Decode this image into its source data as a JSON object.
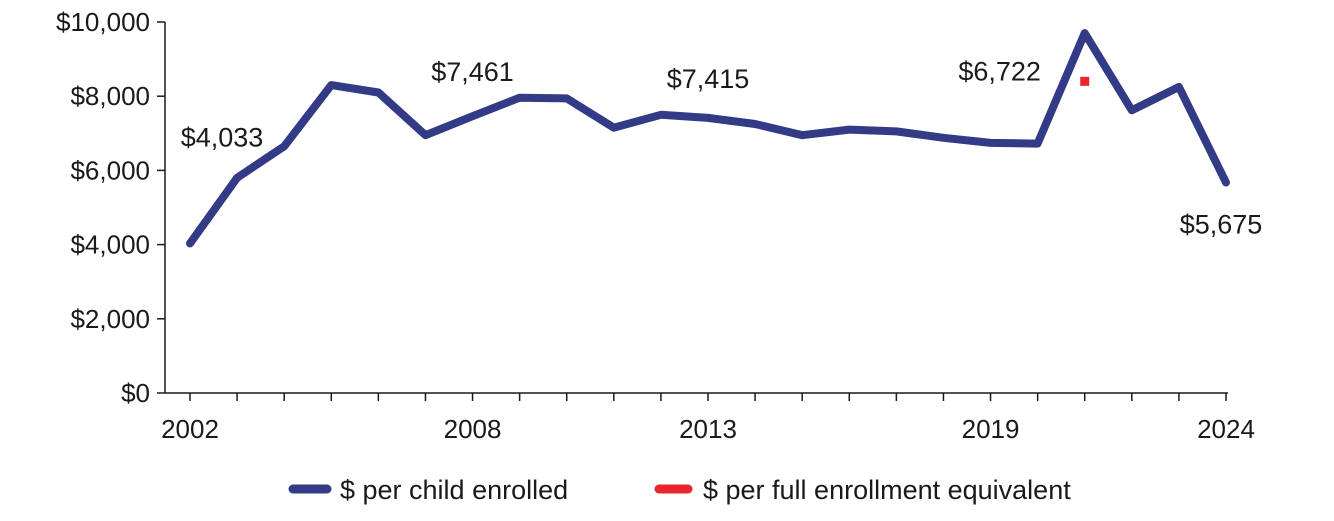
{
  "chart_data": {
    "type": "line",
    "title": "",
    "xlabel": "",
    "ylabel": "",
    "x": [
      2002,
      2003,
      2004,
      2005,
      2006,
      2007,
      2008,
      2009,
      2010,
      2011,
      2012,
      2013,
      2014,
      2015,
      2016,
      2017,
      2018,
      2019,
      2020,
      2021,
      2022,
      2023,
      2024
    ],
    "x_tick_labels": [
      {
        "year": 2002,
        "label": "2002"
      },
      {
        "year": 2008,
        "label": "2008"
      },
      {
        "year": 2013,
        "label": "2013"
      },
      {
        "year": 2019,
        "label": "2019"
      },
      {
        "year": 2024,
        "label": "2024"
      }
    ],
    "ylim": [
      0,
      10000
    ],
    "y_ticks": [
      0,
      2000,
      4000,
      6000,
      8000,
      10000
    ],
    "y_tick_labels": [
      "$0",
      "$2,000",
      "$4,000",
      "$6,000",
      "$8,000",
      "$10,000"
    ],
    "series": [
      {
        "name": "$ per child enrolled",
        "color": "#333a86",
        "values": [
          4033,
          5800,
          6650,
          8300,
          8100,
          6950,
          7461,
          7960,
          7940,
          7150,
          7500,
          7415,
          7250,
          6950,
          7100,
          7050,
          6880,
          6740,
          6722,
          9700,
          7620,
          8250,
          5675
        ]
      },
      {
        "name": "$ per full enrollment equivalent",
        "color": "#e8262b",
        "points": [
          {
            "x": 2021,
            "y": 8400
          }
        ]
      }
    ],
    "annotations": [
      {
        "x": 2002,
        "y": 4033,
        "label": "$4,033"
      },
      {
        "x": 2008,
        "y": 7461,
        "label": "$7,461"
      },
      {
        "x": 2013,
        "y": 7415,
        "label": "$7,415"
      },
      {
        "x": 2020,
        "y": 6722,
        "label": "$6,722"
      },
      {
        "x": 2024,
        "y": 5675,
        "label": "$5,675"
      }
    ],
    "legend": {
      "placement": "bottom"
    },
    "grid": false
  }
}
